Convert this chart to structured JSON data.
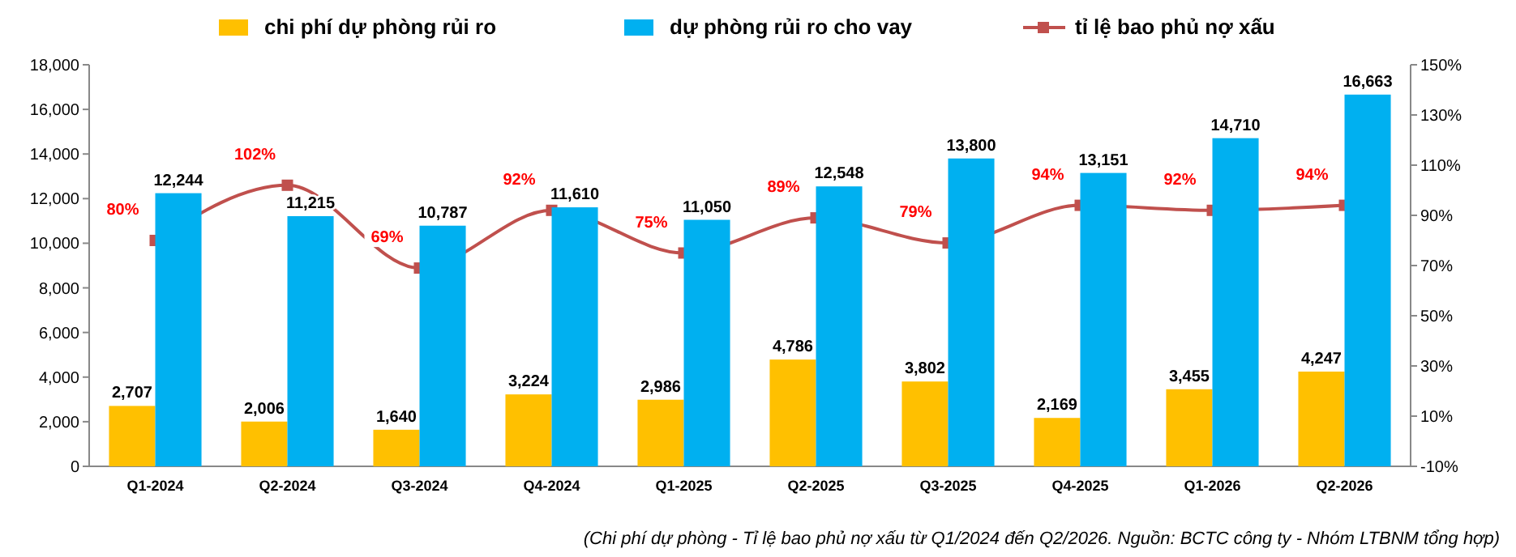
{
  "chart_data": {
    "type": "bar",
    "categories": [
      "Q1-2024",
      "Q2-2024",
      "Q3-2024",
      "Q4-2024",
      "Q1-2025",
      "Q2-2025",
      "Q3-2025",
      "Q4-2025",
      "Q1-2026",
      "Q2-2026"
    ],
    "series": [
      {
        "name": "chi phí dự phòng rủi ro",
        "color": "#ffc000",
        "values": [
          2707,
          2006,
          1640,
          3224,
          2986,
          4786,
          3802,
          2169,
          3455,
          4247
        ],
        "value_labels": [
          "2,707",
          "2,006",
          "1,640",
          "3,224",
          "2,986",
          "4,786",
          "3,802",
          "2,169",
          "3,455",
          "4,247"
        ]
      },
      {
        "name": "dự phòng rủi ro cho vay",
        "color": "#00b0f0",
        "values": [
          12244,
          11215,
          10787,
          11610,
          11050,
          12548,
          13800,
          13151,
          14710,
          16663
        ],
        "value_labels": [
          "12,244",
          "11,215",
          "10,787",
          "11,610",
          "11,050",
          "12,548",
          "13,800",
          "13,151",
          "14,710",
          "16,663"
        ]
      },
      {
        "name": "tỉ lệ bao phủ nợ xấu",
        "type": "line",
        "axis": "y2",
        "color": "#c0504d",
        "marker": "square",
        "values": [
          80,
          102,
          69,
          92,
          75,
          89,
          79,
          94,
          92,
          94
        ],
        "value_labels": [
          "80%",
          "102%",
          "69%",
          "92%",
          "75%",
          "89%",
          "79%",
          "94%",
          "92%",
          "94%"
        ]
      }
    ],
    "ylim": [
      0,
      18000
    ],
    "yticks": [
      {
        "value": 0,
        "label": "0"
      },
      {
        "value": 2000,
        "label": "2,000"
      },
      {
        "value": 4000,
        "label": "4,000"
      },
      {
        "value": 6000,
        "label": "6,000"
      },
      {
        "value": 8000,
        "label": "8,000"
      },
      {
        "value": 10000,
        "label": "10,000"
      },
      {
        "value": 12000,
        "label": "12,000"
      },
      {
        "value": 14000,
        "label": "14,000"
      },
      {
        "value": 16000,
        "label": "16,000"
      },
      {
        "value": 18000,
        "label": "18,000"
      }
    ],
    "y2lim": [
      -10,
      150
    ],
    "y2ticks": [
      {
        "value": -10,
        "label": "-10%"
      },
      {
        "value": 10,
        "label": "10%"
      },
      {
        "value": 30,
        "label": "30%"
      },
      {
        "value": 50,
        "label": "50%"
      },
      {
        "value": 70,
        "label": "70%"
      },
      {
        "value": 90,
        "label": "90%"
      },
      {
        "value": 110,
        "label": "110%"
      },
      {
        "value": 130,
        "label": "130%"
      },
      {
        "value": 150,
        "label": "150%"
      }
    ],
    "legend": "top",
    "grid": false,
    "annotations": [
      "(Chi phí dự phòng - Tỉ lệ bao phủ nợ xấu từ Q1/2024 đến Q2/2026. Nguồn: BCTC công ty - Nhóm LTBNM tổng hợp)"
    ]
  }
}
